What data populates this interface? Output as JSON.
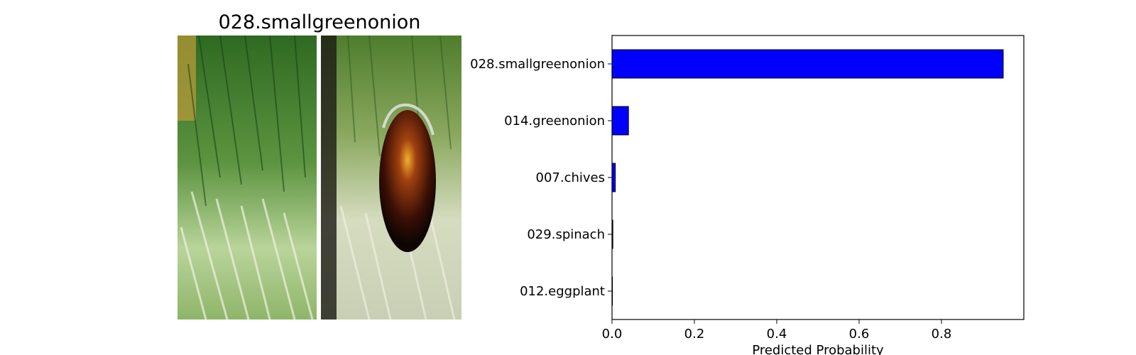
{
  "image_panel": {
    "title": "028.smallgreenonion",
    "description_icon": "vegetable-photo-pair",
    "colors": {
      "leaf_dark": "#1f5a1a",
      "leaf_light": "#4a8a35",
      "stem": "#c9dcae",
      "stem_light": "#e8f0d8",
      "overlay_dark": "#1a0d08",
      "overlay_glow": "#d08a20"
    }
  },
  "chart_data": {
    "type": "bar",
    "orientation": "horizontal",
    "categories": [
      "028.smallgreenonion",
      "014.greenonion",
      "007.chives",
      "029.spinach",
      "012.eggplant"
    ],
    "values": [
      0.95,
      0.04,
      0.008,
      0.002,
      0.001
    ],
    "xlabel": "Predicted Probability",
    "ylabel": "",
    "xlim": [
      0,
      1.0
    ],
    "xticks": [
      "0.0",
      "0.2",
      "0.4",
      "0.6",
      "0.8"
    ],
    "xtick_values": [
      0,
      0.2,
      0.4,
      0.6,
      0.8
    ],
    "bar_color": "#0000ff",
    "edge_color": "#000000",
    "grid": false
  }
}
